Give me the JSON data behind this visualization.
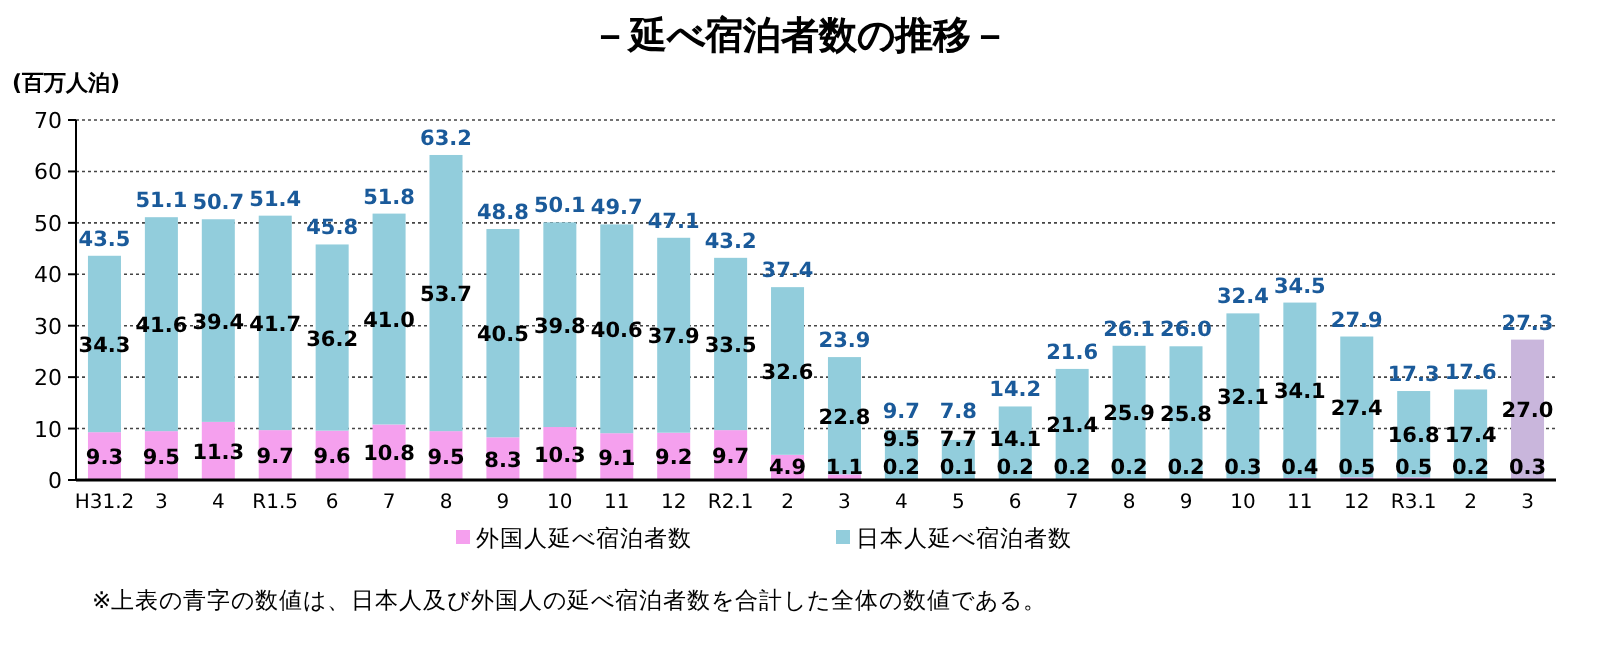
{
  "chart_data": {
    "type": "bar",
    "title": "－延べ宿泊者数の推移－",
    "ylabel": "(百万人泊)",
    "stacked": true,
    "categories": [
      "H31.2",
      "3",
      "4",
      "R1.5",
      "6",
      "7",
      "8",
      "9",
      "10",
      "11",
      "12",
      "R2.1",
      "2",
      "3",
      "4",
      "5",
      "6",
      "7",
      "8",
      "9",
      "10",
      "11",
      "12",
      "R3.1",
      "2",
      "3"
    ],
    "series": [
      {
        "name": "外国人延べ宿泊者数",
        "color": "#f5a0ee",
        "colors": [
          "#f5a0ee",
          "#f5a0ee",
          "#f5a0ee",
          "#f5a0ee",
          "#f5a0ee",
          "#f5a0ee",
          "#f5a0ee",
          "#f5a0ee",
          "#f5a0ee",
          "#f5a0ee",
          "#f5a0ee",
          "#f5a0ee",
          "#f5a0ee",
          "#f5a0ee",
          "#f5a0ee",
          "#f5a0ee",
          "#f5a0ee",
          "#f5a0ee",
          "#f5a0ee",
          "#f5a0ee",
          "#f5a0ee",
          "#f5a0ee",
          "#f5a0ee",
          "#f5a0ee",
          "#f5a0ee",
          "#c9b6dc"
        ],
        "values": [
          9.3,
          9.5,
          11.3,
          9.7,
          9.6,
          10.8,
          9.5,
          8.3,
          10.3,
          9.1,
          9.2,
          9.7,
          4.9,
          1.1,
          0.2,
          0.1,
          0.2,
          0.2,
          0.2,
          0.2,
          0.3,
          0.4,
          0.5,
          0.5,
          0.2,
          0.3
        ],
        "value_labels": [
          "9.3",
          "9.5",
          "11.3",
          "9.7",
          "9.6",
          "10.8",
          "9.5",
          "8.3",
          "10.3",
          "9.1",
          "9.2",
          "9.7",
          "4.9",
          "1.1",
          "0.2",
          "0.1",
          "0.2",
          "0.2",
          "0.2",
          "0.2",
          "0.3",
          "0.4",
          "0.5",
          "0.5",
          "0.2",
          "0.3"
        ]
      },
      {
        "name": "日本人延べ宿泊者数",
        "color": "#92cddc",
        "colors": [
          "#92cddc",
          "#92cddc",
          "#92cddc",
          "#92cddc",
          "#92cddc",
          "#92cddc",
          "#92cddc",
          "#92cddc",
          "#92cddc",
          "#92cddc",
          "#92cddc",
          "#92cddc",
          "#92cddc",
          "#92cddc",
          "#92cddc",
          "#92cddc",
          "#92cddc",
          "#92cddc",
          "#92cddc",
          "#92cddc",
          "#92cddc",
          "#92cddc",
          "#92cddc",
          "#92cddc",
          "#92cddc",
          "#c9b6dc"
        ],
        "values": [
          34.3,
          41.6,
          39.4,
          41.7,
          36.2,
          41.0,
          53.7,
          40.5,
          39.8,
          40.6,
          37.9,
          33.5,
          32.6,
          22.8,
          9.5,
          7.7,
          14.1,
          21.4,
          25.9,
          25.8,
          32.1,
          34.1,
          27.4,
          16.8,
          17.4,
          27.0
        ],
        "value_labels": [
          "34.3",
          "41.6",
          "39.4",
          "41.7",
          "36.2",
          "41.0",
          "53.7",
          "40.5",
          "39.8",
          "40.6",
          "37.9",
          "33.5",
          "32.6",
          "22.8",
          "9.5",
          "7.7",
          "14.1",
          "21.4",
          "25.9",
          "25.8",
          "32.1",
          "34.1",
          "27.4",
          "16.8",
          "17.4",
          "27.0"
        ]
      }
    ],
    "totals": [
      "43.5",
      "51.1",
      "50.7",
      "51.4",
      "45.8",
      "51.8",
      "63.2",
      "48.8",
      "50.1",
      "49.7",
      "47.1",
      "43.2",
      "37.4",
      "23.9",
      "9.7",
      "7.8",
      "14.2",
      "21.6",
      "26.1",
      "26.0",
      "32.4",
      "34.5",
      "27.9",
      "17.3",
      "17.6",
      "27.3"
    ],
    "ylim": [
      0,
      70
    ],
    "yticks": [
      0,
      10,
      20,
      30,
      40,
      50,
      60,
      70
    ],
    "grid": "y",
    "legend": "bottom",
    "annotations": [
      "※上表の青字の数値は、日本人及び外国人の延べ宿泊者数を合計した全体の数値である。"
    ]
  }
}
